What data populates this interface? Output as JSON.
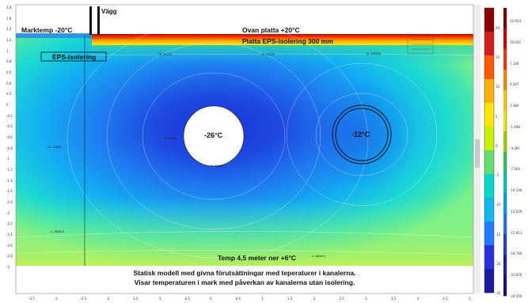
{
  "labels": {
    "wall": "Vägg",
    "ground_temp": "Marktemp -20°C",
    "above_slab": "Ovan platta +20°C",
    "slab_insulation": "Platta EPS-isolering 300 mm",
    "eps_insulation": "EPS-isolering",
    "pipe_left_temp": "-26°C",
    "pipe_right_temp": "-12°C",
    "bottom_temp": "Temp 4,5 meter ner +6°C"
  },
  "caption": [
    "Statisk modell med givna förutsättningar med teperaturer i kanalerna.",
    "Visar temperaturen i mark med påverkan av kanalerna utan isolering."
  ],
  "axes": {
    "x_ticks": [
      "-3.5",
      "-3",
      "-2.5",
      "-2",
      "-1.5",
      "-1",
      "-0.5",
      "0",
      "0.5",
      "1",
      "1.5",
      "2",
      "2.5",
      "3",
      "3.5",
      "4",
      "4.5",
      "5"
    ],
    "y_ticks": [
      "1.8",
      "1.6",
      "1.4",
      "1.2",
      "1",
      "0.8",
      "0.6",
      "0.4",
      "0.2",
      "0",
      "-0.2",
      "-0.4",
      "-0.6",
      "-0.8",
      "-1",
      "-1.2",
      "-1.4",
      "-1.6",
      "-1.8",
      "-2",
      "-2.2",
      "-2.4",
      "-2.6",
      "-2.8",
      "-3"
    ]
  },
  "probes": [
    {
      "text": "-11.14049"
    },
    {
      "text": "-4.366074"
    },
    {
      "text": "-4.366074"
    },
    {
      "text": "16.81103"
    },
    {
      "text": "16.81103"
    },
    {
      "text": "16.146456"
    },
    {
      "text": "-12.82681"
    },
    {
      "text": "-12.82681"
    }
  ],
  "colorbar_inner": {
    "ticks": [
      "20",
      "15",
      "10",
      "5",
      "0",
      "-5",
      "-10",
      "-15",
      "-20",
      "-25"
    ],
    "colors": [
      "#8b0000",
      "#d41c1c",
      "#ff5a00",
      "#ffb000",
      "#ffe600",
      "#c8f000",
      "#5ee06a",
      "#00d8c8",
      "#10b8f0",
      "#1f7cff",
      "#2530e0",
      "#1a1aa0"
    ]
  },
  "colorbar_outer": {
    "ticks": [
      "12.914",
      "10.032",
      "7.149",
      "4.267",
      "1.384",
      "-1.498",
      "-4.381",
      "-7.264",
      "-10.146",
      "-13.029",
      "-15.911",
      "-18.794",
      "-21.676",
      "-24.559"
    ],
    "colors": [
      "#7a0000",
      "#c80000",
      "#e83a00",
      "#ff8000",
      "#ffc000",
      "#f0e000",
      "#9ad000",
      "#30c060",
      "#00c0c0",
      "#00a0e8",
      "#2070f0",
      "#2040d0",
      "#1a1ab0",
      "#101080"
    ]
  }
}
